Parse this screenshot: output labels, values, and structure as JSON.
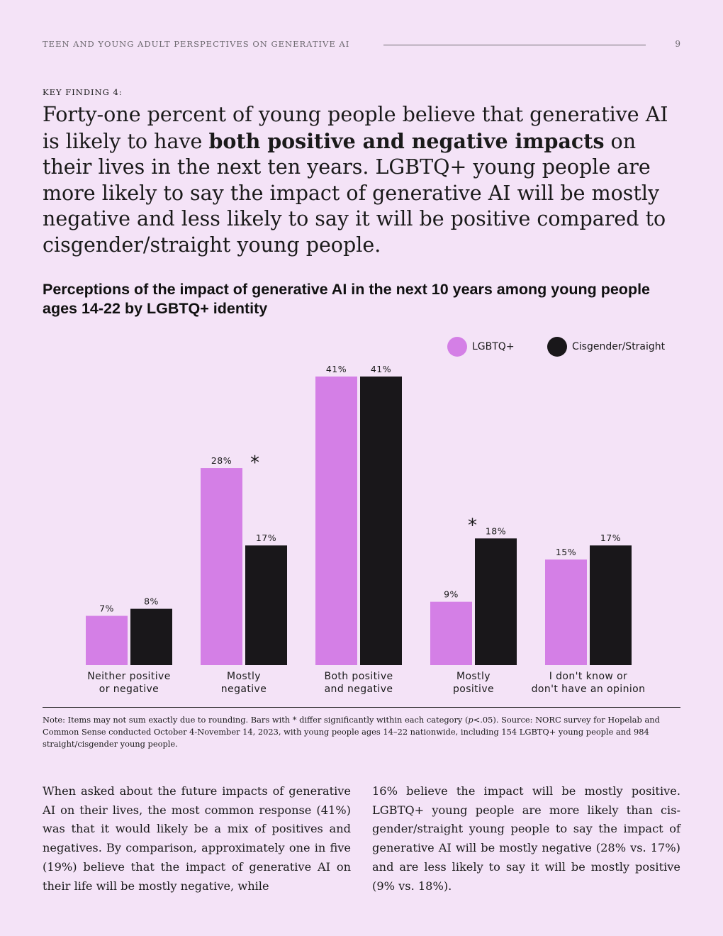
{
  "header": {
    "running_title": "TEEN AND YOUNG ADULT PERSPECTIVES ON GENERATIVE AI",
    "page_number": "9"
  },
  "finding": {
    "kicker": "KEY FINDING 4:",
    "headline_before": "Forty-one percent of young people believe that generative AI is likely to have ",
    "headline_bold": "both positive and negative impacts",
    "headline_after": " on their lives in the next ten years. LGBTQ+ young people are more likely to say the impact of generative AI will be mostly negative and less likely to say it will be positive compared to cisgender/straight young people."
  },
  "chart_data": {
    "type": "bar",
    "title": "Perceptions of the impact of generative AI in the next 10 years among young people ages 14-22 by LGBTQ+ identity",
    "xlabel": "",
    "ylabel": "",
    "ylim": [
      0,
      41
    ],
    "grid": false,
    "legend_position": "top-right",
    "categories": [
      [
        "Neither positive",
        "or negative"
      ],
      [
        "Mostly",
        "negative"
      ],
      [
        "Both positive",
        "and negative"
      ],
      [
        "Mostly",
        "positive"
      ],
      [
        "I don't know or",
        "don't have an opinion"
      ]
    ],
    "series": [
      {
        "name": "LGBTQ+",
        "color": "#d47fe6",
        "values": [
          7,
          28,
          41,
          9,
          15
        ]
      },
      {
        "name": "Cisgender/Straight",
        "color": "#19171a",
        "values": [
          8,
          17,
          41,
          18,
          17
        ]
      }
    ],
    "value_suffix": "%",
    "significance_marker": "*",
    "significant_categories": [
      1,
      3
    ]
  },
  "note": {
    "text_before": "Note: Items may not sum exactly due to rounding. Bars with  * differ significantly within each category (",
    "italic": "p",
    "text_after": "<.05). Source: NORC survey for Hopelab and Common Sense conducted October 4-November 14, 2023, with young people ages 14–22 nationwide, including 154 LGBTQ+ young people and 984 straight/cisgender young people."
  },
  "body": {
    "column_left": "When asked about the future impacts of genera­tive AI on their lives, the most common response (41%) was that it would likely be a mix of positives and negatives. By comparison, approximately one in five (19%) believe that the impact of generative AI on their life will be mostly negative, while",
    "column_right": "16% believe the impact will be mostly positive. LGBTQ+ young people are more likely than cis­gender/straight young people to say the impact of generative AI will be mostly negative (28% vs. 17%) and are less likely to say it will be mostly positive (9% vs. 18%)."
  }
}
